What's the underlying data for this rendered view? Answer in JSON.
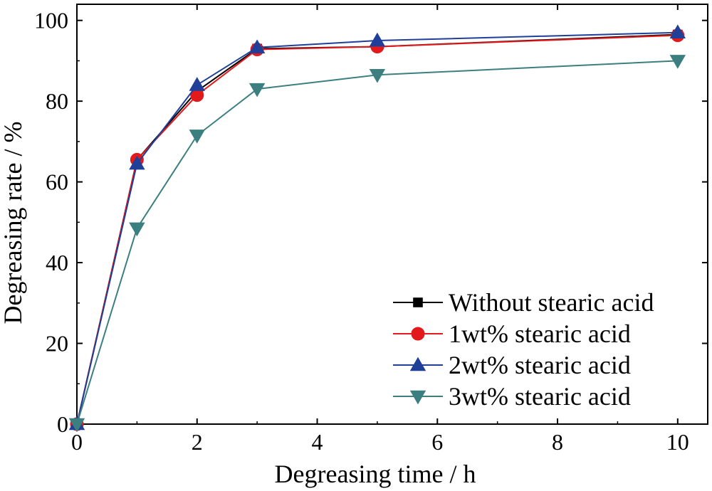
{
  "chart_data": {
    "type": "line",
    "xlabel": "Degreasing time / h",
    "ylabel": "Degreasing rate / %",
    "xlim": [
      0,
      10.5
    ],
    "ylim": [
      0,
      104
    ],
    "xticks": [
      0,
      2,
      4,
      6,
      8,
      10
    ],
    "yticks": [
      0,
      20,
      40,
      60,
      80,
      100
    ],
    "grid": false,
    "legend_position": "bottom-right",
    "x": [
      0,
      1,
      2,
      3,
      5,
      10
    ],
    "series": [
      {
        "name": "Without stearic acid",
        "color": "#000000",
        "marker": "square",
        "values": [
          0,
          65.5,
          82.5,
          93.0,
          93.5,
          96.5
        ]
      },
      {
        "name": "1wt% stearic acid",
        "color": "#e31a1c",
        "marker": "circle",
        "values": [
          0,
          65.5,
          81.5,
          92.8,
          93.5,
          96.3
        ]
      },
      {
        "name": "2wt% stearic acid",
        "color": "#1f3f99",
        "marker": "triangle-up",
        "values": [
          0,
          64.5,
          84.0,
          93.3,
          95.0,
          97.0
        ]
      },
      {
        "name": "3wt% stearic acid",
        "color": "#3b7f80",
        "marker": "triangle-down",
        "values": [
          0,
          48.5,
          71.5,
          83.0,
          86.5,
          90.0
        ]
      }
    ]
  }
}
